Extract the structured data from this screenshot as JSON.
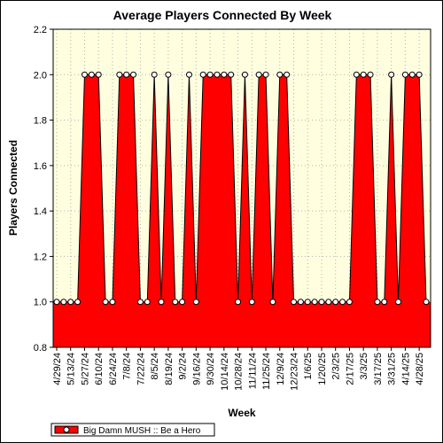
{
  "chart_data": {
    "type": "area",
    "title": "Average Players Connected By Week",
    "xlabel": "Week",
    "ylabel": "Players Connected",
    "ylim": [
      0.8,
      2.2
    ],
    "yticks": [
      "0.8",
      "1.0",
      "1.2",
      "1.4",
      "1.6",
      "1.8",
      "2.0",
      "2.2"
    ],
    "xtick_labels": [
      "4/29/24",
      "5/13/24",
      "5/27/24",
      "6/10/24",
      "6/24/24",
      "7/8/24",
      "7/22/24",
      "8/5/24",
      "8/19/24",
      "9/2/24",
      "9/16/24",
      "9/30/24",
      "10/14/24",
      "10/28/24",
      "11/11/24",
      "11/25/24",
      "12/9/24",
      "12/23/24",
      "1/6/25",
      "1/20/25",
      "2/3/25",
      "2/17/25",
      "3/3/25",
      "3/17/25",
      "3/31/25",
      "4/14/25",
      "4/28/25"
    ],
    "grid": true,
    "legend_position": "bottom-left",
    "series": [
      {
        "name": "Big Damn MUSH :: Be a Hero",
        "color": "#ff0000",
        "values": [
          1,
          1,
          1,
          1,
          2,
          2,
          2,
          1,
          1,
          2,
          2,
          2,
          1,
          1,
          2,
          1,
          2,
          1,
          1,
          2,
          1,
          2,
          2,
          2,
          2,
          2,
          1,
          2,
          1,
          2,
          2,
          1,
          2,
          2,
          1,
          1,
          1,
          1,
          1,
          1,
          1,
          1,
          1,
          2,
          2,
          2,
          1,
          1,
          2,
          1,
          2,
          2,
          2,
          1
        ]
      }
    ]
  }
}
